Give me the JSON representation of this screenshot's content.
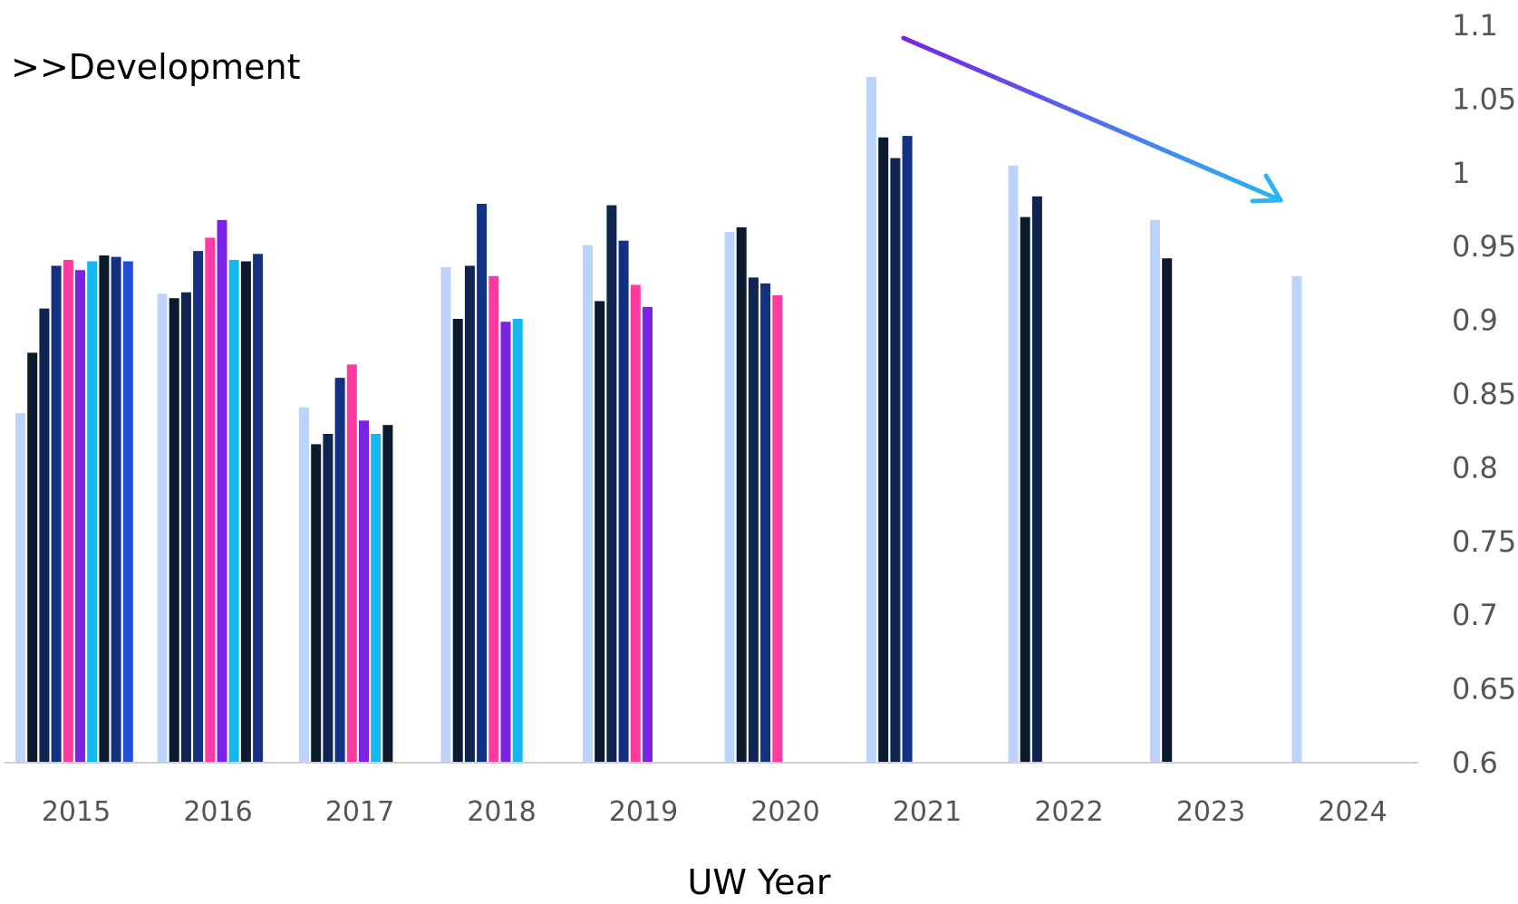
{
  "chart_data": {
    "type": "bar",
    "annotation": ">>Development",
    "xlabel": "UW Year",
    "ylabel": "",
    "ylim": [
      0.6,
      1.1
    ],
    "y_ticks": [
      "0.6",
      "0.65",
      "0.7",
      "0.75",
      "0.8",
      "0.85",
      "0.9",
      "0.95",
      "1",
      "1.05",
      "1.1"
    ],
    "y_axis_side": "right",
    "legend": "none",
    "categories": [
      "2015",
      "2016",
      "2017",
      "2018",
      "2019",
      "2020",
      "2021",
      "2022",
      "2023",
      "2024"
    ],
    "series_colors": [
      "#bcd4fb",
      "#0b1a2e",
      "#0f2451",
      "#123182",
      "#ff3aa0",
      "#7a22e6",
      "#14b8ee",
      "#0b1a2e",
      "#123182",
      "#1f4fd8"
    ],
    "series": [
      {
        "values": [
          0.837,
          0.918,
          0.841,
          0.936,
          0.951,
          0.96,
          1.065,
          1.005,
          0.968,
          0.93
        ]
      },
      {
        "values": [
          0.878,
          0.915,
          0.816,
          0.901,
          0.913,
          0.963,
          1.024,
          0.97,
          0.942,
          null
        ]
      },
      {
        "values": [
          0.908,
          0.919,
          0.823,
          0.937,
          0.978,
          0.929,
          1.01,
          0.984,
          null,
          null
        ]
      },
      {
        "values": [
          0.937,
          0.947,
          0.861,
          0.979,
          0.954,
          0.925,
          1.025,
          null,
          null,
          null
        ]
      },
      {
        "values": [
          0.941,
          0.956,
          0.87,
          0.93,
          0.924,
          0.917,
          null,
          null,
          null,
          null
        ]
      },
      {
        "values": [
          0.934,
          0.968,
          0.832,
          0.899,
          0.909,
          null,
          null,
          null,
          null,
          null
        ]
      },
      {
        "values": [
          0.94,
          0.941,
          0.823,
          0.901,
          null,
          null,
          null,
          null,
          null,
          null
        ]
      },
      {
        "values": [
          0.944,
          0.94,
          0.829,
          null,
          null,
          null,
          null,
          null,
          null,
          null
        ]
      },
      {
        "values": [
          0.943,
          0.945,
          null,
          null,
          null,
          null,
          null,
          null,
          null,
          null
        ]
      },
      {
        "values": [
          0.94,
          null,
          null,
          null,
          null,
          null,
          null,
          null,
          null,
          null
        ]
      }
    ],
    "trend_arrow": {
      "colors": [
        "#7a22e6",
        "#29b6f6"
      ]
    }
  }
}
